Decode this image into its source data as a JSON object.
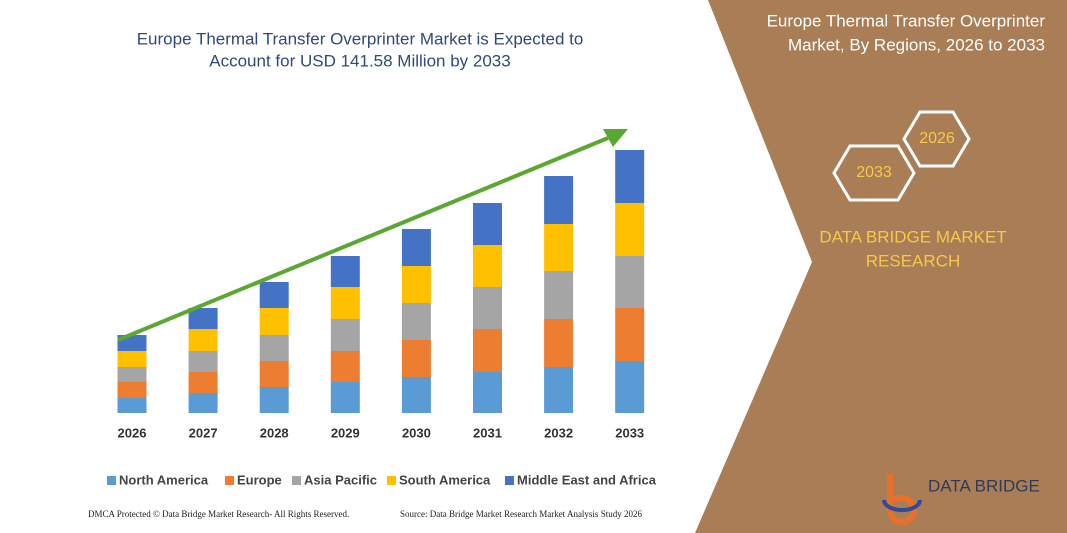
{
  "chart_data": {
    "type": "stacked-bar",
    "title": [
      "Europe Thermal Transfer Overprinter Market is Expected to",
      "Account for USD 141.58 Million by 2033"
    ],
    "categories": [
      "2026",
      "2027",
      "2028",
      "2029",
      "2030",
      "2031",
      "2032",
      "2033"
    ],
    "ylim": [
      0,
      280
    ],
    "series": [
      {
        "name": "North America",
        "color": "#5b9bd5",
        "values": [
          15,
          20,
          26,
          31,
          36,
          41,
          46,
          52
        ]
      },
      {
        "name": "Europe",
        "color": "#ed7d31",
        "values": [
          16,
          21,
          26,
          31,
          37,
          43,
          48,
          53
        ]
      },
      {
        "name": "Asia Pacific",
        "color": "#a5a5a5",
        "values": [
          15,
          21,
          26,
          32,
          37,
          42,
          48,
          52
        ]
      },
      {
        "name": "South America",
        "color": "#ffc000",
        "values": [
          16,
          22,
          27,
          32,
          37,
          42,
          47,
          53
        ]
      },
      {
        "name": "Middle East and Africa",
        "color": "#4472c4",
        "values": [
          16,
          21,
          26,
          31,
          37,
          42,
          48,
          53
        ]
      }
    ]
  },
  "panel": {
    "title": [
      "Europe Thermal Transfer Overprinter",
      "Market, By Regions, 2026 to 2033"
    ],
    "hexagons": [
      "2026",
      "2033"
    ],
    "brand": [
      "DATA BRIDGE MARKET",
      "RESEARCH"
    ]
  },
  "logo": "DATA BRIDGE",
  "footer": {
    "left": "DMCA Protected © Data Bridge Market Research- All Rights Reserved.",
    "right": "Source: Data Bridge Market Research Market Analysis Study 2026"
  }
}
